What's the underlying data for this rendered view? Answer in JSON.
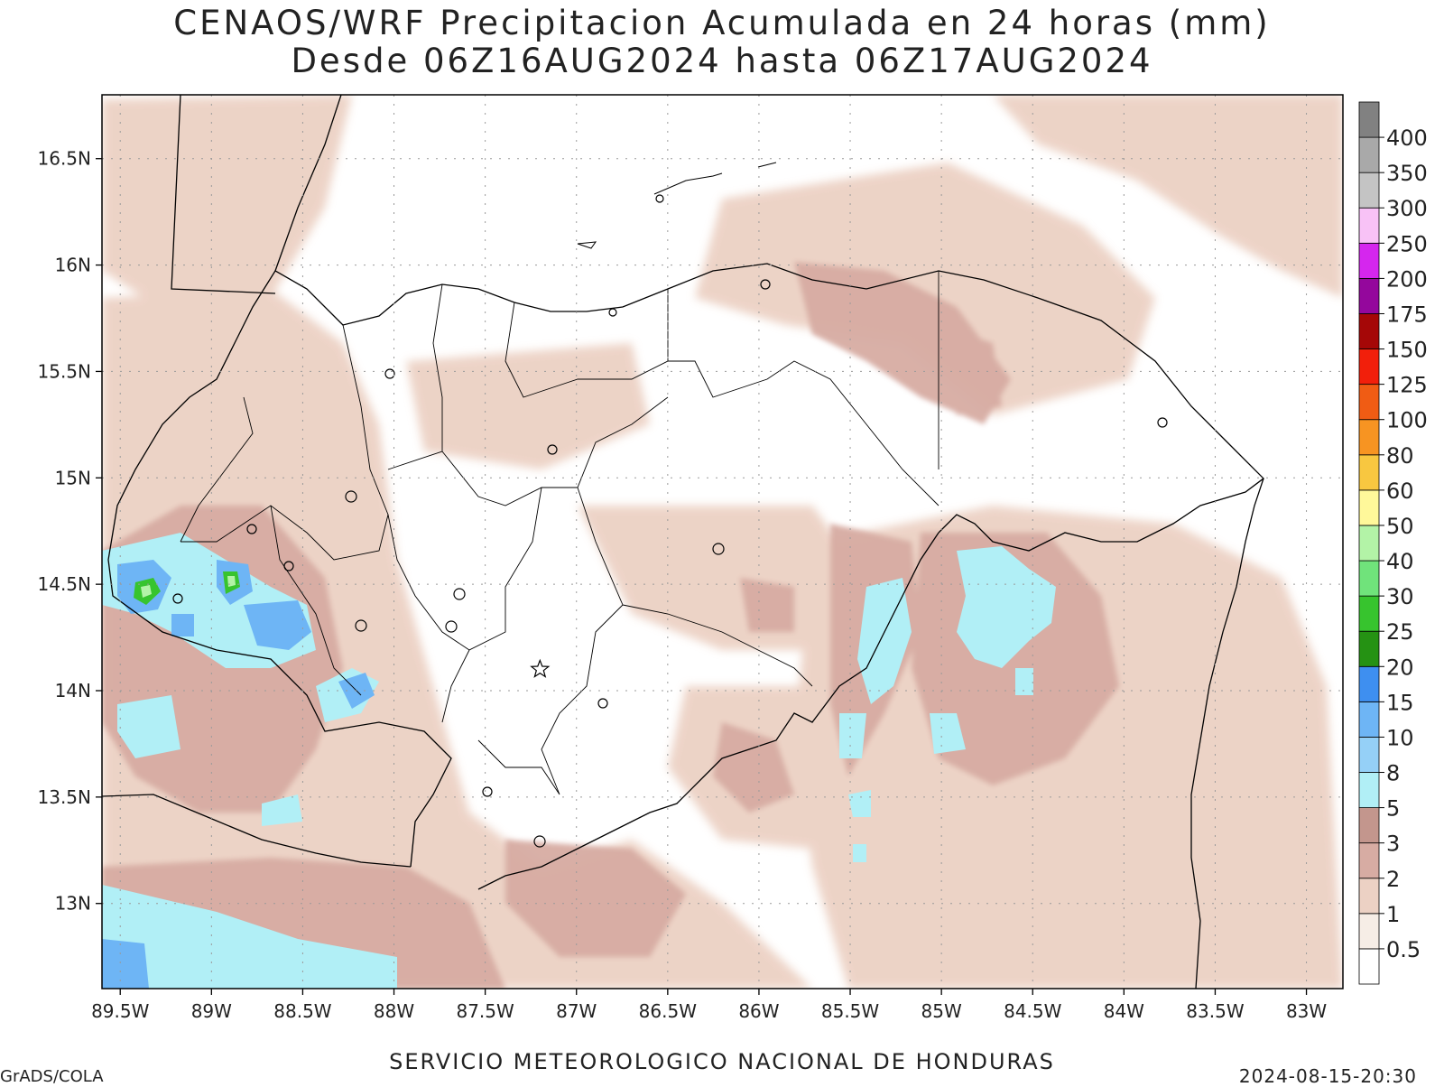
{
  "title": {
    "line1": "CENAOS/WRF Precipitacion Acumulada en 24 horas (mm)",
    "line2": "Desde 06Z16AUG2024 hasta 06Z17AUG2024"
  },
  "footer": {
    "center": "SERVICIO METEOROLOGICO NACIONAL DE HONDURAS",
    "left": "GrADS/COLA",
    "right": "2024-08-15-20:30"
  },
  "map": {
    "lon_range": [
      -89.6,
      -82.8
    ],
    "lat_range": [
      12.6,
      16.8
    ],
    "lon_ticks": [
      {
        "value": -89.5,
        "label": "89.5W"
      },
      {
        "value": -89,
        "label": "89W"
      },
      {
        "value": -88.5,
        "label": "88.5W"
      },
      {
        "value": -88,
        "label": "88W"
      },
      {
        "value": -87.5,
        "label": "87.5W"
      },
      {
        "value": -87,
        "label": "87W"
      },
      {
        "value": -86.5,
        "label": "86.5W"
      },
      {
        "value": -86,
        "label": "86W"
      },
      {
        "value": -85.5,
        "label": "85.5W"
      },
      {
        "value": -85,
        "label": "85W"
      },
      {
        "value": -84.5,
        "label": "84.5W"
      },
      {
        "value": -84,
        "label": "84W"
      },
      {
        "value": -83.5,
        "label": "83.5W"
      },
      {
        "value": -83,
        "label": "83W"
      }
    ],
    "lat_ticks": [
      {
        "value": 16.5,
        "label": "16.5N"
      },
      {
        "value": 16,
        "label": "16N"
      },
      {
        "value": 15.5,
        "label": "15.5N"
      },
      {
        "value": 15,
        "label": "15N"
      },
      {
        "value": 14.5,
        "label": "14.5N"
      },
      {
        "value": 14,
        "label": "14N"
      },
      {
        "value": 13.5,
        "label": "13.5N"
      },
      {
        "value": 13,
        "label": "13N"
      }
    ],
    "grid": true,
    "capital_marker": {
      "lon": -87.2,
      "lat": 14.1,
      "symbol": "star"
    }
  },
  "colorbar": {
    "levels": [
      "0.5",
      "1",
      "2",
      "3",
      "5",
      "8",
      "10",
      "15",
      "20",
      "25",
      "30",
      "40",
      "50",
      "60",
      "80",
      "100",
      "125",
      "150",
      "175",
      "200",
      "250",
      "300",
      "350",
      "400"
    ],
    "colors": [
      "#ffffff",
      "#f6ede6",
      "#ecd1c4",
      "#d7aca3",
      "#c3968d",
      "#b1eff6",
      "#95d0f7",
      "#6eb5f5",
      "#3e8ff0",
      "#259213",
      "#37c42e",
      "#70e37b",
      "#b3f3a7",
      "#fff89a",
      "#f8c740",
      "#f79422",
      "#f05c14",
      "#f21f0b",
      "#a50707",
      "#94079c",
      "#d526ee",
      "#f8c2f6",
      "#c4c4c4",
      "#a9a9a9",
      "#818181"
    ]
  }
}
